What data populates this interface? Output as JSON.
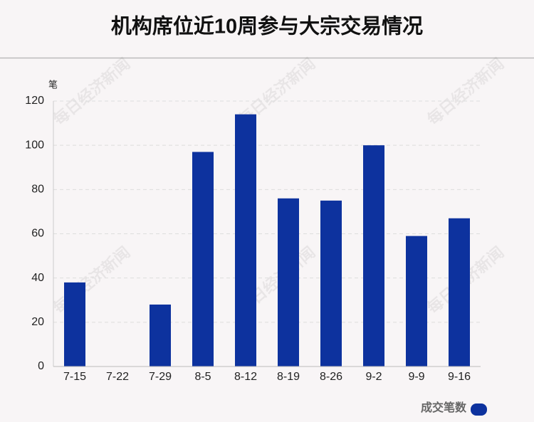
{
  "chart_data": {
    "type": "bar",
    "title": "机构席位近10周参与大宗交易情况",
    "y_axis_label": "笔",
    "watermark": "每日经济新闻",
    "categories": [
      "7-15",
      "7-22",
      "7-29",
      "8-5",
      "8-12",
      "8-19",
      "8-26",
      "9-2",
      "9-9",
      "9-16"
    ],
    "series": [
      {
        "name": "成交笔数",
        "color": "#0d329e",
        "values": [
          38,
          0,
          28,
          97,
          114,
          76,
          75,
          100,
          59,
          67
        ]
      }
    ],
    "ylim": [
      0,
      120
    ],
    "yticks": [
      0,
      20,
      40,
      60,
      80,
      100,
      120
    ],
    "grid": true
  }
}
